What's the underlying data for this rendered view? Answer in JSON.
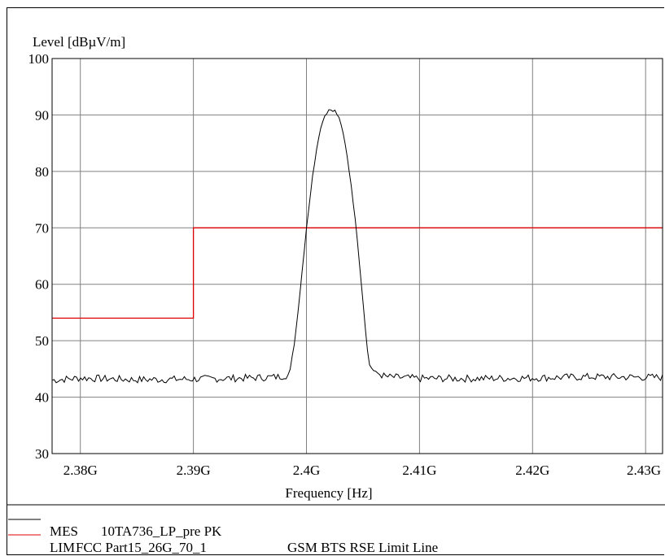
{
  "chart_data": {
    "type": "line",
    "ylabel": "Level [dBµV/m]",
    "xlabel": "Frequency [Hz]",
    "xlim": [
      2.3775,
      2.4315
    ],
    "ylim": [
      30,
      100
    ],
    "x_ticks": [
      {
        "value": 2.38,
        "label": "2.38G"
      },
      {
        "value": 2.39,
        "label": "2.39G"
      },
      {
        "value": 2.4,
        "label": "2.4G"
      },
      {
        "value": 2.41,
        "label": "2.41G"
      },
      {
        "value": 2.42,
        "label": "2.42G"
      },
      {
        "value": 2.43,
        "label": "2.43G"
      }
    ],
    "y_ticks": [
      30,
      40,
      50,
      60,
      70,
      80,
      90,
      100
    ],
    "grid": true,
    "series": [
      {
        "name": "MES",
        "color": "#000000",
        "noise_floor": 43.2,
        "x": [
          2.3775,
          2.38,
          2.385,
          2.39,
          2.395,
          2.3975,
          2.3985,
          2.399,
          2.3995,
          2.4,
          2.4005,
          2.401,
          2.4015,
          2.402,
          2.4025,
          2.403,
          2.4035,
          2.404,
          2.4045,
          2.405,
          2.4055,
          2.406,
          2.407,
          2.41,
          2.415,
          2.42,
          2.425,
          2.4315
        ],
        "y": [
          43.0,
          43.4,
          43.1,
          43.2,
          43.4,
          43.6,
          44.0,
          50.5,
          60.0,
          70.0,
          78.5,
          85.5,
          89.5,
          91.0,
          90.8,
          89.0,
          84.0,
          77.0,
          68.0,
          57.0,
          46.0,
          44.5,
          43.6,
          43.3,
          43.3,
          43.4,
          43.6,
          43.5
        ]
      },
      {
        "name": "LIM",
        "color": "#e00000",
        "x": [
          2.3775,
          2.39,
          2.39,
          2.4315
        ],
        "y": [
          54,
          54,
          70,
          70
        ]
      }
    ],
    "legend": {
      "placement": "bottom-left",
      "entries": [
        {
          "key": "MES",
          "desc": "10TA736_LP_pre PK",
          "extra": "",
          "color": "#000000"
        },
        {
          "key": "LIM",
          "desc": "FCC Part15_26G_70_1",
          "extra": "GSM BTS RSE Limit Line",
          "color": "#e00000"
        }
      ]
    }
  }
}
